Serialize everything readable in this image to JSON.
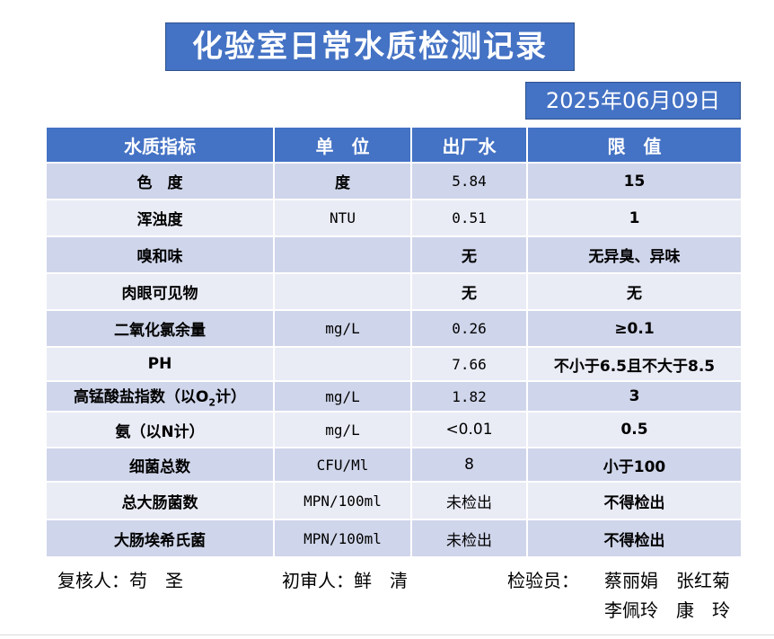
{
  "title": "化验室日常水质检测记录",
  "date": "2025年06月09日",
  "table": {
    "headers": [
      "水质指标",
      "单　位",
      "出厂水",
      "限　值"
    ],
    "rows": [
      {
        "indicator": "色　度",
        "unit": "度",
        "value": "5.84",
        "limit": "15"
      },
      {
        "indicator": "浑浊度",
        "unit": "NTU",
        "value": "0.51",
        "limit": "1"
      },
      {
        "indicator": "嗅和味",
        "unit": "",
        "value": "无",
        "limit": "无异臭、异味"
      },
      {
        "indicator": "肉眼可见物",
        "unit": "",
        "value": "无",
        "limit": "无"
      },
      {
        "indicator": "二氧化氯余量",
        "unit": "mg/L",
        "value": "0.26",
        "limit": "≥0.1"
      },
      {
        "indicator": "PH",
        "unit": "",
        "value": "7.66",
        "limit": "不小于6.5且不大于8.5"
      },
      {
        "indicator_pre": "高锰酸盐指数（以O",
        "indicator_sub": "2",
        "indicator_post": "计）",
        "unit": "mg/L",
        "value": "1.82",
        "limit": "3"
      },
      {
        "indicator": "氨（以N计）",
        "unit": "mg/L",
        "value": "<0.01",
        "limit": "0.5"
      },
      {
        "indicator": "细菌总数",
        "unit": "CFU/Ml",
        "value": "8",
        "limit": "小于100"
      },
      {
        "indicator": "总大肠菌数",
        "unit": "MPN/100ml",
        "value": "未检出",
        "limit": "不得检出"
      },
      {
        "indicator": "大肠埃希氏菌",
        "unit": "MPN/100ml",
        "value": "未检出",
        "limit": "不得检出"
      }
    ]
  },
  "footer": {
    "reviewer": "复核人：苟　圣",
    "first_reviewer": "初审人：鲜　清",
    "inspector_label": "检验员：",
    "inspectors_line1": "蔡丽娟　张红菊",
    "inspectors_line2": "李佩玲　康　玲"
  }
}
